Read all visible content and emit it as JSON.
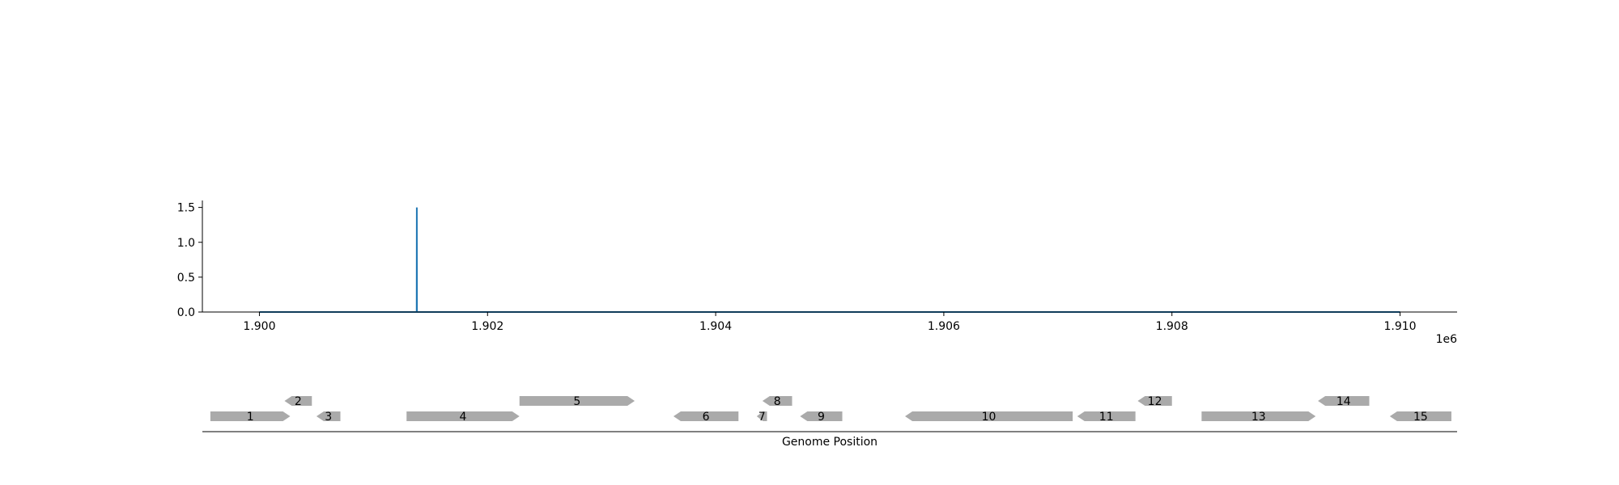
{
  "chart_data": [
    {
      "type": "line",
      "title": "",
      "xlabel": "",
      "ylabel": "",
      "x_offset_label": "1e6",
      "xlim": [
        1899500,
        1910500
      ],
      "ylim": [
        0,
        1.6
      ],
      "x_ticks": [
        1900000,
        1902000,
        1904000,
        1906000,
        1908000,
        1910000
      ],
      "x_tick_labels": [
        "1.900",
        "1.902",
        "1.904",
        "1.906",
        "1.908",
        "1.910"
      ],
      "y_ticks": [
        0,
        0.5,
        1.0,
        1.5
      ],
      "y_tick_labels": [
        "0.0",
        "0.5",
        "1.0",
        "1.5"
      ],
      "grid": false,
      "series": [
        {
          "x": [
            1900000,
            1901379,
            1901380,
            1901381,
            1910000
          ],
          "y": [
            0,
            0,
            1.5,
            0,
            0
          ],
          "color": "#1f77b4"
        }
      ]
    },
    {
      "type": "gene-map",
      "xlabel": "Genome Position",
      "xlim": [
        1899500,
        1910500
      ],
      "color": "#aaaaaa",
      "genes": [
        {
          "label": "1",
          "start": 1899570,
          "end": 1900270,
          "strand": "+",
          "row": 0
        },
        {
          "label": "2",
          "start": 1900220,
          "end": 1900460,
          "strand": "-",
          "row": 1
        },
        {
          "label": "3",
          "start": 1900500,
          "end": 1900710,
          "strand": "-",
          "row": 0
        },
        {
          "label": "4",
          "start": 1901290,
          "end": 1902280,
          "strand": "+",
          "row": 0
        },
        {
          "label": "5",
          "start": 1902280,
          "end": 1903290,
          "strand": "+",
          "row": 1
        },
        {
          "label": "6",
          "start": 1903630,
          "end": 1904200,
          "strand": "-",
          "row": 0
        },
        {
          "label": "7",
          "start": 1904360,
          "end": 1904450,
          "strand": "-",
          "row": 0
        },
        {
          "label": "8",
          "start": 1904410,
          "end": 1904670,
          "strand": "-",
          "row": 1
        },
        {
          "label": "9",
          "start": 1904740,
          "end": 1905110,
          "strand": "-",
          "row": 0
        },
        {
          "label": "10",
          "start": 1905660,
          "end": 1907130,
          "strand": "-",
          "row": 0
        },
        {
          "label": "11",
          "start": 1907170,
          "end": 1907680,
          "strand": "-",
          "row": 0
        },
        {
          "label": "12",
          "start": 1907700,
          "end": 1908000,
          "strand": "-",
          "row": 1
        },
        {
          "label": "13",
          "start": 1908260,
          "end": 1909260,
          "strand": "+",
          "row": 0
        },
        {
          "label": "14",
          "start": 1909280,
          "end": 1909730,
          "strand": "-",
          "row": 1
        },
        {
          "label": "15",
          "start": 1909910,
          "end": 1910450,
          "strand": "-",
          "row": 0
        }
      ]
    }
  ]
}
